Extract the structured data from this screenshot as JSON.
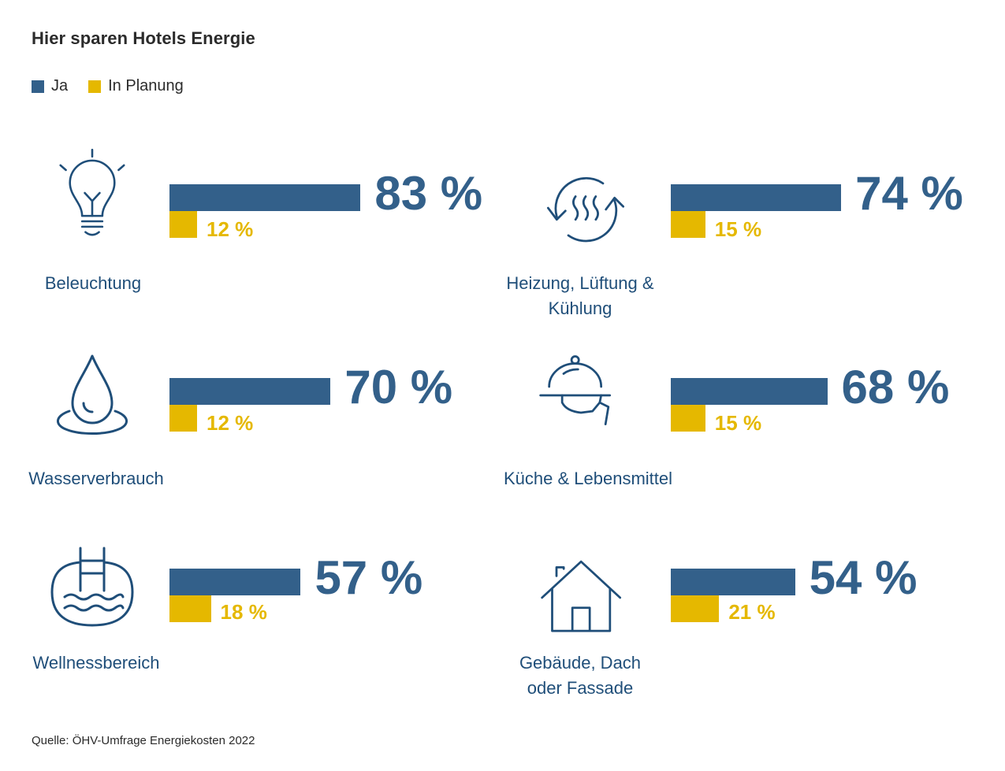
{
  "title": "Hier sparen Hotels Energie",
  "legend": [
    {
      "label": "Ja",
      "color": "#33608a"
    },
    {
      "label": "In Planung",
      "color": "#e5b800"
    }
  ],
  "chart_data": {
    "type": "bar",
    "title": "Hier sparen Hotels Energie",
    "unit": "%",
    "categories": [
      "Beleuchtung",
      "Heizung, Lüftung & Kühlung",
      "Wasserverbrauch",
      "Küche & Lebensmittel",
      "Wellnessbereich",
      "Gebäude, Dach oder Fassade"
    ],
    "series": [
      {
        "name": "Ja",
        "color": "#33608a",
        "values": [
          83,
          74,
          70,
          68,
          57,
          54
        ]
      },
      {
        "name": "In Planung",
        "color": "#e5b800",
        "values": [
          12,
          15,
          12,
          15,
          18,
          21
        ]
      }
    ]
  },
  "panels": [
    {
      "label": "Beleuchtung",
      "icon": "lightbulb-icon",
      "ja": "83 %",
      "plan": "12 %"
    },
    {
      "label": "Heizung, Lüftung & Kühlung",
      "icon": "heating-cycle-icon",
      "ja": "74 %",
      "plan": "15 %"
    },
    {
      "label": "Wasserverbrauch",
      "icon": "water-drop-icon",
      "ja": "70 %",
      "plan": "12 %"
    },
    {
      "label": "Küche & Lebensmittel",
      "icon": "serving-cloche-icon",
      "ja": "68 %",
      "plan": "15 %"
    },
    {
      "label": "Wellnessbereich",
      "icon": "pool-icon",
      "ja": "57 %",
      "plan": "18 %"
    },
    {
      "label": "Gebäude, Dach oder Fassade",
      "icon": "house-icon",
      "ja": "54 %",
      "plan": "21 %"
    }
  ],
  "source": "Quelle: ÖHV-Umfrage Energiekosten 2022"
}
